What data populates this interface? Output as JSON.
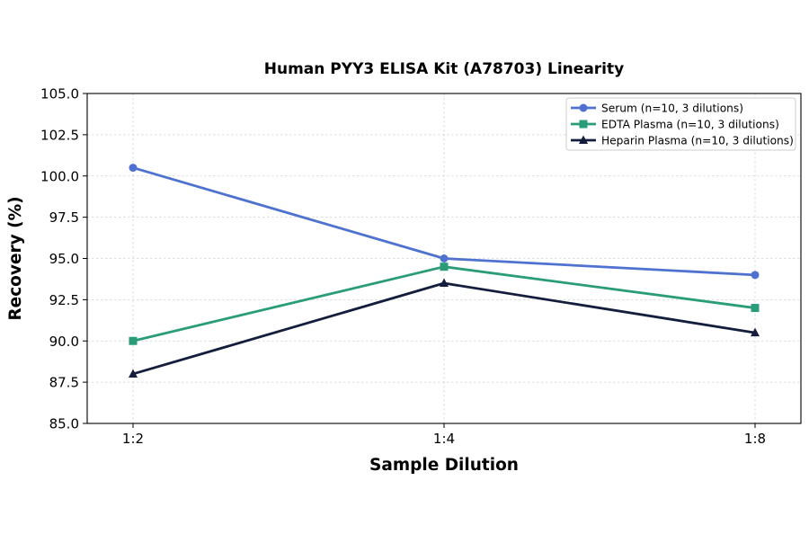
{
  "chart_data": {
    "type": "line",
    "title": "Human PYY3 ELISA Kit (A78703) Linearity",
    "xlabel": "Sample Dilution",
    "ylabel": "Recovery (%)",
    "categories": [
      "1:2",
      "1:4",
      "1:8"
    ],
    "ylim": [
      85.0,
      105.0
    ],
    "yticks": [
      "85.0",
      "87.5",
      "90.0",
      "92.5",
      "95.0",
      "97.5",
      "100.0",
      "102.5",
      "105.0"
    ],
    "grid": true,
    "legend_position": "top-right",
    "series": [
      {
        "name": "Serum (n=10, 3 dilutions)",
        "values": [
          100.5,
          95.0,
          94.0
        ],
        "color": "#4f72d0",
        "marker": "circle"
      },
      {
        "name": "EDTA Plasma (n=10, 3 dilutions)",
        "values": [
          90.0,
          94.5,
          92.0
        ],
        "color": "#2a9d78",
        "marker": "square"
      },
      {
        "name": "Heparin Plasma (n=10, 3 dilutions)",
        "values": [
          88.0,
          93.5,
          90.5
        ],
        "color": "#141e3c",
        "marker": "triangle"
      }
    ]
  }
}
